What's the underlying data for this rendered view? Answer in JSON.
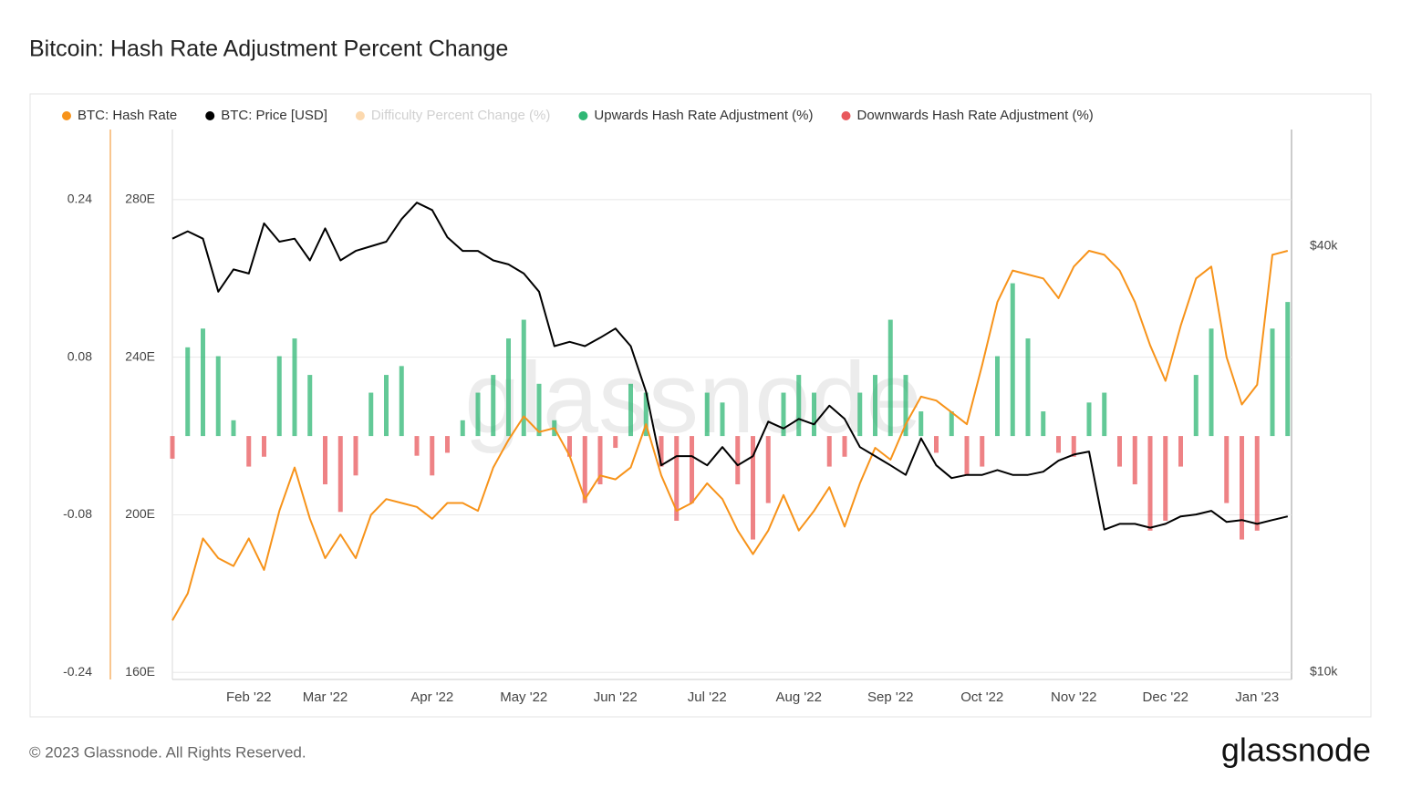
{
  "header": {
    "title": "Bitcoin: Hash Rate Adjustment Percent Change"
  },
  "chart_data": {
    "type": "combo",
    "watermark": "glassnode",
    "categories": [
      null,
      null,
      null,
      null,
      null,
      "Feb '22",
      null,
      null,
      null,
      null,
      "Mar '22",
      null,
      null,
      null,
      null,
      null,
      null,
      "Apr '22",
      null,
      null,
      null,
      null,
      null,
      "May '22",
      null,
      null,
      null,
      null,
      null,
      "Jun '22",
      null,
      null,
      null,
      null,
      null,
      "Jul '22",
      null,
      null,
      null,
      null,
      null,
      "Aug '22",
      null,
      null,
      null,
      null,
      null,
      "Sep '22",
      null,
      null,
      null,
      null,
      null,
      "Oct '22",
      null,
      null,
      null,
      null,
      null,
      "Nov '22",
      null,
      null,
      null,
      null,
      null,
      "Dec '22",
      null,
      null,
      null,
      null,
      null,
      "Jan '23",
      null,
      null
    ],
    "ylim": [
      -0.247,
      0.311
    ],
    "yticks": [
      -0.24,
      -0.08,
      0.08,
      0.24
    ],
    "y2lim": [
      158.2,
      297.8
    ],
    "y2ticks": [
      {
        "value": 160,
        "label": "160E"
      },
      {
        "value": 200,
        "label": "200E"
      },
      {
        "value": 240,
        "label": "240E"
      },
      {
        "value": 280,
        "label": "280E"
      }
    ],
    "y3lim": [
      9760,
      58500
    ],
    "y3scale": "log",
    "y3ticks": [
      {
        "value": 10000,
        "label": "$10k"
      },
      {
        "value": 40000,
        "label": "$40k"
      }
    ],
    "grid": true,
    "grid_axis": "y2",
    "legend": "top-left",
    "series": [
      {
        "name": "BTC: Hash Rate",
        "type": "line",
        "axis": "y2",
        "color": "#f7931a",
        "values": [
          173.2,
          180,
          194,
          189,
          187,
          194,
          186,
          201,
          212,
          199,
          189,
          195,
          189,
          200,
          204,
          203,
          202,
          199,
          203,
          203,
          201,
          212,
          219,
          225,
          221,
          222,
          215,
          204,
          210,
          209,
          212,
          223,
          210,
          201,
          203,
          208,
          204,
          196,
          190,
          196,
          205,
          196,
          201,
          207,
          197,
          208,
          217,
          214,
          223,
          230,
          229,
          226,
          223,
          238,
          254,
          262,
          261,
          260,
          255,
          263,
          267,
          266,
          262,
          254,
          243,
          234,
          248,
          260,
          263,
          240,
          228,
          233,
          266,
          267
        ]
      },
      {
        "name": "BTC: Price [USD]",
        "type": "line",
        "axis": "y3",
        "color": "#000000",
        "values": [
          41000,
          42000,
          41000,
          34500,
          37100,
          36600,
          43100,
          40600,
          41000,
          38200,
          42400,
          38200,
          39400,
          40000,
          40600,
          43700,
          46100,
          45000,
          41200,
          39400,
          39400,
          38200,
          37700,
          36600,
          34500,
          28900,
          29300,
          28900,
          29700,
          30600,
          28900,
          24900,
          19600,
          20200,
          20200,
          19600,
          20800,
          19600,
          20200,
          22600,
          22100,
          22800,
          22400,
          23800,
          22800,
          20800,
          20200,
          19600,
          19000,
          21400,
          19600,
          18800,
          19000,
          19000,
          19300,
          19000,
          19000,
          19200,
          19900,
          20300,
          20500,
          15900,
          16200,
          16200,
          16000,
          16200,
          16600,
          16700,
          16900,
          16300,
          16400,
          16200,
          16400,
          16600
        ]
      },
      {
        "name": "Difficulty Percent Change (%)",
        "color": "#f7931a",
        "hidden": true
      },
      {
        "name": "Upwards Hash Rate Adjustment (%)",
        "type": "bar",
        "axis": "y",
        "color": "#2fb774",
        "values": [
          null,
          0.09,
          0.109,
          0.081,
          0.016,
          null,
          null,
          0.081,
          0.099,
          0.062,
          null,
          null,
          null,
          0.044,
          0.062,
          0.071,
          null,
          null,
          null,
          0.016,
          0.044,
          0.062,
          0.099,
          0.118,
          0.053,
          0.016,
          null,
          null,
          null,
          null,
          0.053,
          0.044,
          null,
          null,
          null,
          0.044,
          0.034,
          null,
          null,
          null,
          0.044,
          0.062,
          0.044,
          null,
          null,
          0.044,
          0.062,
          0.118,
          0.062,
          0.025,
          null,
          0.025,
          null,
          null,
          0.081,
          0.155,
          0.099,
          0.025,
          null,
          null,
          0.034,
          0.044,
          null,
          null,
          null,
          null,
          null,
          0.062,
          0.109,
          null,
          null,
          null,
          0.109,
          0.136
        ]
      },
      {
        "name": "Downwards Hash Rate Adjustment (%)",
        "type": "bar",
        "axis": "y",
        "color": "#e8585c",
        "values": [
          -0.023,
          null,
          null,
          null,
          null,
          -0.031,
          -0.021,
          null,
          null,
          null,
          -0.049,
          -0.077,
          -0.04,
          null,
          null,
          null,
          -0.02,
          -0.04,
          -0.017,
          null,
          null,
          null,
          null,
          null,
          null,
          null,
          -0.021,
          -0.068,
          -0.049,
          -0.012,
          null,
          null,
          -0.031,
          -0.086,
          -0.068,
          null,
          null,
          -0.049,
          -0.105,
          -0.068,
          null,
          null,
          null,
          -0.031,
          -0.021,
          null,
          null,
          null,
          null,
          null,
          -0.017,
          null,
          -0.04,
          -0.031,
          null,
          null,
          null,
          null,
          -0.017,
          -0.021,
          null,
          null,
          -0.031,
          -0.049,
          -0.096,
          -0.086,
          -0.031,
          null,
          null,
          -0.068,
          -0.105,
          -0.096,
          null,
          null
        ]
      }
    ]
  },
  "footer": {
    "copyright": "© 2023 Glassnode. All Rights Reserved.",
    "logo": "glassnode"
  }
}
